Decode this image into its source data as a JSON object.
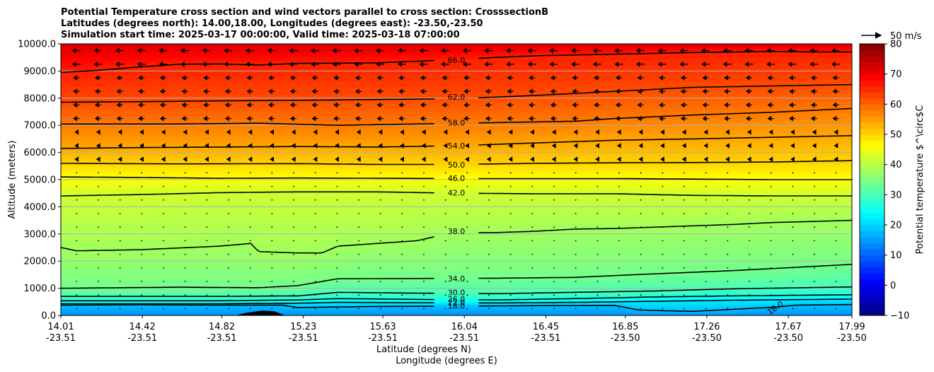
{
  "chart_data": {
    "type": "heatmap",
    "title_lines": [
      "Potential Temperature cross section and wind vectors parallel to cross section: CrosssectionB",
      "Latitudes (degrees north): 14.00,18.00, Longitudes (degrees east): -23.50,-23.50",
      "Simulation start time: 2025-03-17 00:00:00, Valid time: 2025-03-18 07:00:00"
    ],
    "xlabel_lines": [
      "Latitude (degrees N)",
      "Longitude (degrees E)"
    ],
    "ylabel": "Altitude (meters)",
    "x_ticks": [
      {
        "lat": "14.01",
        "lon": "-23.51"
      },
      {
        "lat": "14.42",
        "lon": "-23.51"
      },
      {
        "lat": "14.82",
        "lon": "-23.51"
      },
      {
        "lat": "15.23",
        "lon": "-23.51"
      },
      {
        "lat": "15.63",
        "lon": "-23.51"
      },
      {
        "lat": "16.04",
        "lon": "-23.51"
      },
      {
        "lat": "16.45",
        "lon": "-23.51"
      },
      {
        "lat": "16.85",
        "lon": "-23.50"
      },
      {
        "lat": "17.26",
        "lon": "-23.50"
      },
      {
        "lat": "17.67",
        "lon": "-23.50"
      },
      {
        "lat": "17.99",
        "lon": "-23.50"
      }
    ],
    "x_range": [
      14.01,
      17.99
    ],
    "y_ticks": [
      "0.0",
      "1000.0",
      "2000.0",
      "3000.0",
      "4000.0",
      "5000.0",
      "6000.0",
      "7000.0",
      "8000.0",
      "9000.0",
      "10000.0"
    ],
    "ylim": [
      0,
      10000
    ],
    "grid": "horizontal",
    "colorbar": {
      "label": "Potential temperature $^\\circ$C",
      "min": -10,
      "max": 80,
      "ticks": [
        "−10",
        "0",
        "10",
        "20",
        "30",
        "40",
        "50",
        "60",
        "70",
        "80"
      ],
      "colormap": "jet"
    },
    "wind_key": {
      "label": "50 m/s",
      "speed": 50
    },
    "contours": [
      {
        "label": "18.0",
        "points": [
          [
            0,
            380
          ],
          [
            0.1,
            390
          ],
          [
            0.2,
            380
          ],
          [
            0.28,
            380
          ],
          [
            0.3,
            290
          ],
          [
            0.4,
            330
          ],
          [
            0.5,
            340
          ],
          [
            0.6,
            360
          ],
          [
            0.7,
            370
          ],
          [
            0.73,
            200
          ],
          [
            0.78,
            160
          ],
          [
            0.8,
            150
          ],
          [
            0.9,
            300
          ],
          [
            0.93,
            380
          ],
          [
            1,
            400
          ]
        ]
      },
      {
        "label": "22.0",
        "points": [
          [
            0,
            430
          ],
          [
            0.2,
            430
          ],
          [
            0.3,
            450
          ],
          [
            0.35,
            480
          ],
          [
            0.45,
            470
          ],
          [
            0.55,
            460
          ],
          [
            0.65,
            480
          ],
          [
            0.75,
            520
          ],
          [
            0.85,
            560
          ],
          [
            1,
            600
          ]
        ]
      },
      {
        "label": "26.0",
        "points": [
          [
            0,
            540
          ],
          [
            0.2,
            540
          ],
          [
            0.3,
            570
          ],
          [
            0.35,
            620
          ],
          [
            0.45,
            590
          ],
          [
            0.55,
            570
          ],
          [
            0.65,
            620
          ],
          [
            0.75,
            680
          ],
          [
            0.85,
            720
          ],
          [
            1,
            760
          ]
        ]
      },
      {
        "label": "30.0",
        "points": [
          [
            0,
            700
          ],
          [
            0.2,
            700
          ],
          [
            0.3,
            720
          ],
          [
            0.35,
            850
          ],
          [
            0.45,
            820
          ],
          [
            0.55,
            800
          ],
          [
            0.65,
            850
          ],
          [
            0.75,
            900
          ],
          [
            0.85,
            980
          ],
          [
            1,
            1050
          ]
        ]
      },
      {
        "label": "34.0",
        "points": [
          [
            0,
            1000
          ],
          [
            0.15,
            1040
          ],
          [
            0.25,
            1020
          ],
          [
            0.3,
            1100
          ],
          [
            0.35,
            1350
          ],
          [
            0.45,
            1360
          ],
          [
            0.55,
            1370
          ],
          [
            0.65,
            1400
          ],
          [
            0.75,
            1530
          ],
          [
            0.85,
            1650
          ],
          [
            1,
            1880
          ]
        ]
      },
      {
        "label": "38.0",
        "points": [
          [
            0,
            2500
          ],
          [
            0.02,
            2380
          ],
          [
            0.1,
            2420
          ],
          [
            0.2,
            2550
          ],
          [
            0.24,
            2650
          ],
          [
            0.25,
            2350
          ],
          [
            0.3,
            2300
          ],
          [
            0.33,
            2300
          ],
          [
            0.35,
            2550
          ],
          [
            0.4,
            2650
          ],
          [
            0.45,
            2750
          ],
          [
            0.48,
            2950
          ],
          [
            0.5,
            3050
          ],
          [
            0.55,
            3050
          ],
          [
            0.6,
            3100
          ],
          [
            0.65,
            3180
          ],
          [
            0.7,
            3200
          ],
          [
            0.75,
            3250
          ],
          [
            0.85,
            3350
          ],
          [
            0.9,
            3420
          ],
          [
            1,
            3500
          ]
        ]
      },
      {
        "label": "42.0",
        "points": [
          [
            0,
            4400
          ],
          [
            0.1,
            4450
          ],
          [
            0.2,
            4520
          ],
          [
            0.3,
            4550
          ],
          [
            0.4,
            4550
          ],
          [
            0.5,
            4500
          ],
          [
            0.6,
            4480
          ],
          [
            0.7,
            4480
          ],
          [
            0.8,
            4420
          ],
          [
            0.9,
            4400
          ],
          [
            1,
            4400
          ]
        ]
      },
      {
        "label": "46.0",
        "points": [
          [
            0,
            5100
          ],
          [
            0.1,
            5080
          ],
          [
            0.2,
            5050
          ],
          [
            0.3,
            5060
          ],
          [
            0.4,
            5050
          ],
          [
            0.5,
            5040
          ],
          [
            0.6,
            5040
          ],
          [
            0.7,
            5040
          ],
          [
            0.8,
            5020
          ],
          [
            0.9,
            5000
          ],
          [
            1,
            5000
          ]
        ]
      },
      {
        "label": "50.0",
        "points": [
          [
            0,
            5600
          ],
          [
            0.15,
            5580
          ],
          [
            0.3,
            5590
          ],
          [
            0.4,
            5560
          ],
          [
            0.5,
            5560
          ],
          [
            0.6,
            5600
          ],
          [
            0.7,
            5620
          ],
          [
            0.8,
            5630
          ],
          [
            0.9,
            5650
          ],
          [
            1,
            5700
          ]
        ]
      },
      {
        "label": "54.0",
        "points": [
          [
            0,
            6150
          ],
          [
            0.1,
            6180
          ],
          [
            0.2,
            6200
          ],
          [
            0.3,
            6220
          ],
          [
            0.4,
            6200
          ],
          [
            0.5,
            6250
          ],
          [
            0.6,
            6350
          ],
          [
            0.7,
            6450
          ],
          [
            0.8,
            6500
          ],
          [
            0.9,
            6560
          ],
          [
            1,
            6620
          ]
        ]
      },
      {
        "label": "58.0",
        "points": [
          [
            0,
            7050
          ],
          [
            0.15,
            7050
          ],
          [
            0.25,
            7080
          ],
          [
            0.35,
            7000
          ],
          [
            0.45,
            7050
          ],
          [
            0.55,
            7100
          ],
          [
            0.65,
            7150
          ],
          [
            0.7,
            7250
          ],
          [
            0.8,
            7380
          ],
          [
            0.9,
            7480
          ],
          [
            1,
            7620
          ]
        ]
      },
      {
        "label": "62.0",
        "points": [
          [
            0,
            7850
          ],
          [
            0.1,
            7870
          ],
          [
            0.2,
            7900
          ],
          [
            0.3,
            7920
          ],
          [
            0.4,
            7950
          ],
          [
            0.5,
            7980
          ],
          [
            0.6,
            8100
          ],
          [
            0.7,
            8250
          ],
          [
            0.8,
            8400
          ],
          [
            0.9,
            8450
          ],
          [
            1,
            8500
          ]
        ]
      },
      {
        "label": "66.0",
        "points": [
          [
            0,
            8950
          ],
          [
            0.05,
            9030
          ],
          [
            0.1,
            9150
          ],
          [
            0.15,
            9250
          ],
          [
            0.2,
            9260
          ],
          [
            0.25,
            9220
          ],
          [
            0.3,
            9280
          ],
          [
            0.4,
            9300
          ],
          [
            0.5,
            9420
          ],
          [
            0.55,
            9500
          ],
          [
            0.6,
            9560
          ],
          [
            0.7,
            9620
          ],
          [
            0.8,
            9680
          ],
          [
            0.9,
            9720
          ],
          [
            0.95,
            9700
          ],
          [
            1,
            9700
          ]
        ]
      }
    ],
    "contour_label_positions": [
      {
        "label": "66.0",
        "x": 0.5,
        "y": 9400
      },
      {
        "label": "62.0",
        "x": 0.5,
        "y": 8050
      },
      {
        "label": "58.0",
        "x": 0.5,
        "y": 7100
      },
      {
        "label": "54.0",
        "x": 0.5,
        "y": 6250
      },
      {
        "label": "50.0",
        "x": 0.5,
        "y": 5550
      },
      {
        "label": "46.0",
        "x": 0.5,
        "y": 5050
      },
      {
        "label": "42.0",
        "x": 0.5,
        "y": 4520
      },
      {
        "label": "38.0",
        "x": 0.5,
        "y": 3100
      },
      {
        "label": "34.0",
        "x": 0.5,
        "y": 1350
      },
      {
        "label": "30.0",
        "x": 0.5,
        "y": 850
      },
      {
        "label": "26.0",
        "x": 0.5,
        "y": 600
      },
      {
        "label": "22.0",
        "x": 0.5,
        "y": 480
      },
      {
        "label": "18.0",
        "x": 0.5,
        "y": 350
      },
      {
        "label": "18.0",
        "x": 0.905,
        "y": 300
      }
    ],
    "terrain": [
      [
        0.22,
        0
      ],
      [
        0.235,
        100
      ],
      [
        0.255,
        180
      ],
      [
        0.27,
        150
      ],
      [
        0.28,
        40
      ],
      [
        0.285,
        0
      ]
    ]
  }
}
